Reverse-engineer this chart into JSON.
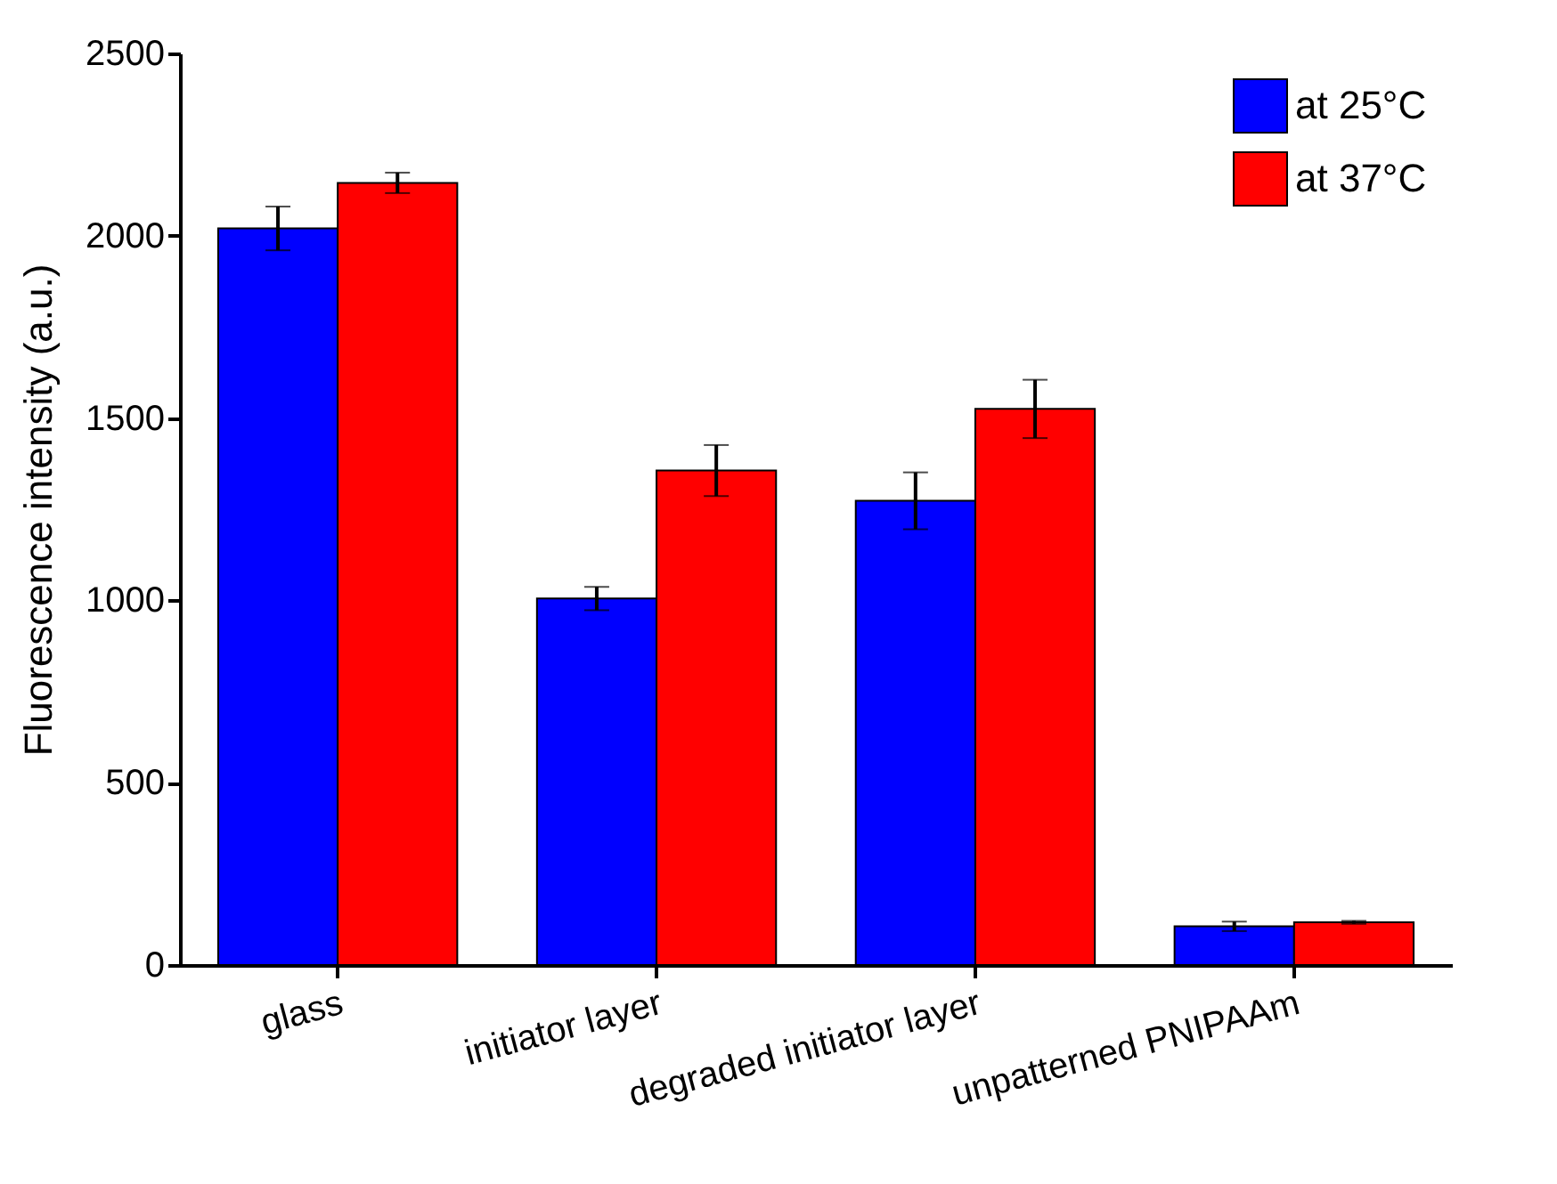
{
  "chart_data": {
    "type": "bar",
    "ylabel": "Fluorescence intensity (a.u.)",
    "categories": [
      "glass",
      "initiator layer",
      "degraded initiator layer",
      "unpatterned PNIPAAm"
    ],
    "series": [
      {
        "name": "at 25°C",
        "color": "#0000ff",
        "values": [
          2020,
          1005,
          1273,
          106
        ],
        "errors": [
          60,
          32,
          78,
          13
        ]
      },
      {
        "name": "at 37°C",
        "color": "#ff0000",
        "values": [
          2145,
          1356,
          1525,
          117
        ],
        "errors": [
          28,
          70,
          80,
          4
        ]
      }
    ],
    "ylim": [
      0,
      2500
    ],
    "yticks": [
      0,
      500,
      1000,
      1500,
      2000,
      2500
    ],
    "grid": false,
    "legend": "top right"
  }
}
